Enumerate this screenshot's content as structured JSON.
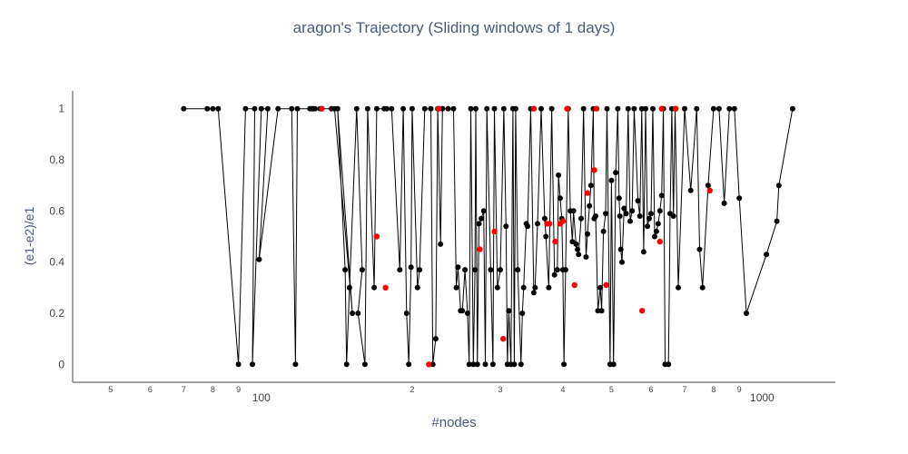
{
  "chart_data": {
    "type": "scatter",
    "mode": "lines+markers",
    "title": "aragon's Trajectory (Sliding windows of 1 days)",
    "xlabel": "#nodes",
    "ylabel": "(e1-e2)/e1",
    "x_scale": "log",
    "xlim": [
      42,
      1400
    ],
    "ylim": [
      -0.07,
      1.07
    ],
    "y_ticks": [
      {
        "value": 0,
        "label": "0"
      },
      {
        "value": 0.2,
        "label": "0.2"
      },
      {
        "value": 0.4,
        "label": "0.4"
      },
      {
        "value": 0.6,
        "label": "0.6"
      },
      {
        "value": 0.8,
        "label": "0.8"
      },
      {
        "value": 1,
        "label": "1"
      }
    ],
    "x_major_ticks": [
      {
        "value": 100,
        "label": "100"
      },
      {
        "value": 1000,
        "label": "1000"
      }
    ],
    "x_minor_ticks": [
      {
        "value": 50,
        "label": "5"
      },
      {
        "value": 60,
        "label": "6"
      },
      {
        "value": 70,
        "label": "7"
      },
      {
        "value": 80,
        "label": "8"
      },
      {
        "value": 90,
        "label": "9"
      },
      {
        "value": 200,
        "label": "2"
      },
      {
        "value": 300,
        "label": "3"
      },
      {
        "value": 400,
        "label": "4"
      },
      {
        "value": 500,
        "label": "5"
      },
      {
        "value": 600,
        "label": "6"
      },
      {
        "value": 700,
        "label": "7"
      },
      {
        "value": 800,
        "label": "8"
      },
      {
        "value": 900,
        "label": "9"
      }
    ],
    "grid": false,
    "colors": {
      "line": "#000000",
      "marker": "#000000",
      "highlight": "#ff0000",
      "axis": "#444444",
      "title": "#4a5a78"
    },
    "series": [
      {
        "points": [
          [
            70,
            1
          ],
          [
            78,
            1
          ],
          [
            80,
            1
          ],
          [
            82,
            1
          ],
          [
            90,
            0
          ],
          [
            93,
            1
          ],
          [
            97,
            1
          ],
          [
            96,
            0
          ],
          [
            100,
            1
          ],
          [
            103,
            1
          ],
          [
            99,
            0.41
          ],
          [
            108,
            1
          ],
          [
            115,
            1
          ],
          [
            117,
            0
          ],
          [
            118,
            1
          ],
          [
            125,
            1
          ],
          [
            127,
            1
          ],
          [
            128,
            1
          ],
          [
            126,
            1
          ],
          [
            131,
            1
          ],
          [
            138,
            1
          ],
          [
            140,
            1
          ],
          [
            152,
            0.2
          ],
          [
            142,
            1
          ],
          [
            147,
            0.37
          ],
          [
            148,
            0
          ],
          [
            150,
            0.3
          ],
          [
            155,
            1
          ],
          [
            159,
            0.37
          ],
          [
            156,
            0.2
          ],
          [
            161,
            0
          ],
          [
            163,
            1
          ],
          [
            168,
            0.3
          ],
          [
            170,
            1
          ],
          [
            176,
            1
          ],
          [
            178,
            1
          ],
          [
            182,
            1
          ],
          [
            189,
            0.37
          ],
          [
            192,
            1
          ],
          [
            195,
            0.2
          ],
          [
            197,
            0
          ],
          [
            199,
            0.38
          ],
          [
            200,
            1
          ],
          [
            205,
            0.3
          ],
          [
            207,
            0.37
          ],
          [
            212,
            1
          ],
          [
            218,
            1
          ],
          [
            220,
            0
          ],
          [
            223,
            0.1
          ],
          [
            225,
            1
          ],
          [
            228,
            0.47
          ],
          [
            230,
            1
          ],
          [
            236,
            1
          ],
          [
            242,
            1
          ],
          [
            245,
            0.3
          ],
          [
            247,
            0.38
          ],
          [
            250,
            0.21
          ],
          [
            252,
            0.21
          ],
          [
            255,
            0.37
          ],
          [
            258,
            0.2
          ],
          [
            260,
            0
          ],
          [
            262,
            1
          ],
          [
            265,
            0
          ],
          [
            267,
            0.37
          ],
          [
            268,
            1
          ],
          [
            270,
            0
          ],
          [
            272,
            0.55
          ],
          [
            275,
            0.57
          ],
          [
            278,
            0.6
          ],
          [
            280,
            0
          ],
          [
            282,
            1
          ],
          [
            287,
            0.37
          ],
          [
            290,
            0
          ],
          [
            292,
            1
          ],
          [
            296,
            0.3
          ],
          [
            300,
            0.37
          ],
          [
            305,
            1
          ],
          [
            308,
            0.54
          ],
          [
            310,
            0
          ],
          [
            312,
            0.21
          ],
          [
            315,
            0
          ],
          [
            318,
            1
          ],
          [
            320,
            0
          ],
          [
            322,
            1
          ],
          [
            325,
            0.37
          ],
          [
            330,
            0
          ],
          [
            332,
            0.2
          ],
          [
            334,
            0.3
          ],
          [
            338,
            0.55
          ],
          [
            340,
            0.54
          ],
          [
            345,
            1
          ],
          [
            350,
            0.28
          ],
          [
            352,
            0.3
          ],
          [
            356,
            0.55
          ],
          [
            362,
            1
          ],
          [
            368,
            0.57
          ],
          [
            370,
            0.5
          ],
          [
            375,
            0.3
          ],
          [
            380,
            1
          ],
          [
            385,
            0.35
          ],
          [
            390,
            0.37
          ],
          [
            392,
            0.74
          ],
          [
            395,
            0.65
          ],
          [
            398,
            0.57
          ],
          [
            400,
            0.37
          ],
          [
            402,
            0
          ],
          [
            405,
            0.37
          ],
          [
            410,
            1
          ],
          [
            414,
            0.6
          ],
          [
            418,
            0.48
          ],
          [
            420,
            0.6
          ],
          [
            425,
            0.47
          ],
          [
            428,
            0.45
          ],
          [
            430,
            0.43
          ],
          [
            435,
            0.57
          ],
          [
            440,
            1
          ],
          [
            445,
            0.42
          ],
          [
            448,
            0.51
          ],
          [
            452,
            0.62
          ],
          [
            455,
            0.7
          ],
          [
            460,
            1
          ],
          [
            462,
            0.57
          ],
          [
            465,
            0.58
          ],
          [
            470,
            0.21
          ],
          [
            475,
            0.3
          ],
          [
            478,
            0.21
          ],
          [
            482,
            0.52
          ],
          [
            487,
            0.59
          ],
          [
            490,
            1
          ],
          [
            497,
            0
          ],
          [
            500,
            0.72
          ],
          [
            505,
            0
          ],
          [
            510,
            0.75
          ],
          [
            515,
            1
          ],
          [
            518,
            0.65
          ],
          [
            520,
            0.58
          ],
          [
            522,
            0.45
          ],
          [
            525,
            0.4
          ],
          [
            530,
            0.61
          ],
          [
            535,
            0.59
          ],
          [
            540,
            1
          ],
          [
            545,
            0.56
          ],
          [
            550,
            0.6
          ],
          [
            555,
            1
          ],
          [
            565,
            0.64
          ],
          [
            570,
            0.58
          ],
          [
            575,
            1
          ],
          [
            580,
            0.44
          ],
          [
            585,
            1
          ],
          [
            590,
            0.54
          ],
          [
            595,
            0.57
          ],
          [
            600,
            0.59
          ],
          [
            605,
            1
          ],
          [
            610,
            0.5
          ],
          [
            615,
            0.52
          ],
          [
            620,
            0.55
          ],
          [
            625,
            0.6
          ],
          [
            630,
            0.66
          ],
          [
            635,
            1
          ],
          [
            640,
            0
          ],
          [
            650,
            0
          ],
          [
            655,
            0.59
          ],
          [
            660,
            1
          ],
          [
            665,
            0.58
          ],
          [
            670,
            1
          ],
          [
            680,
            0.3
          ],
          [
            700,
            1
          ],
          [
            720,
            0.68
          ],
          [
            740,
            1
          ],
          [
            750,
            0.45
          ],
          [
            760,
            0.3
          ],
          [
            780,
            0.7
          ],
          [
            800,
            1
          ],
          [
            820,
            1
          ],
          [
            840,
            0.63
          ],
          [
            860,
            1
          ],
          [
            880,
            1
          ],
          [
            900,
            0.65
          ],
          [
            930,
            0.2
          ],
          [
            1020,
            0.43
          ],
          [
            1070,
            0.56
          ],
          [
            1080,
            0.7
          ],
          [
            1150,
            1
          ]
        ],
        "highlights": [
          [
            132,
            1
          ],
          [
            170,
            0.5
          ],
          [
            177,
            0.3
          ],
          [
            216,
            0
          ],
          [
            226,
            1
          ],
          [
            273,
            0.45
          ],
          [
            292,
            0.52
          ],
          [
            304,
            0.1
          ],
          [
            350,
            1
          ],
          [
            372,
            0.55
          ],
          [
            376,
            0.55
          ],
          [
            386,
            0.48
          ],
          [
            395,
            0.55
          ],
          [
            400,
            0.56
          ],
          [
            408,
            1
          ],
          [
            422,
            0.31
          ],
          [
            448,
            0.67
          ],
          [
            462,
            0.76
          ],
          [
            467,
            1
          ],
          [
            488,
            0.31
          ],
          [
            576,
            0.21
          ],
          [
            625,
            0.48
          ],
          [
            630,
            1
          ],
          [
            672,
            1
          ],
          [
            786,
            0.68
          ]
        ]
      }
    ]
  }
}
